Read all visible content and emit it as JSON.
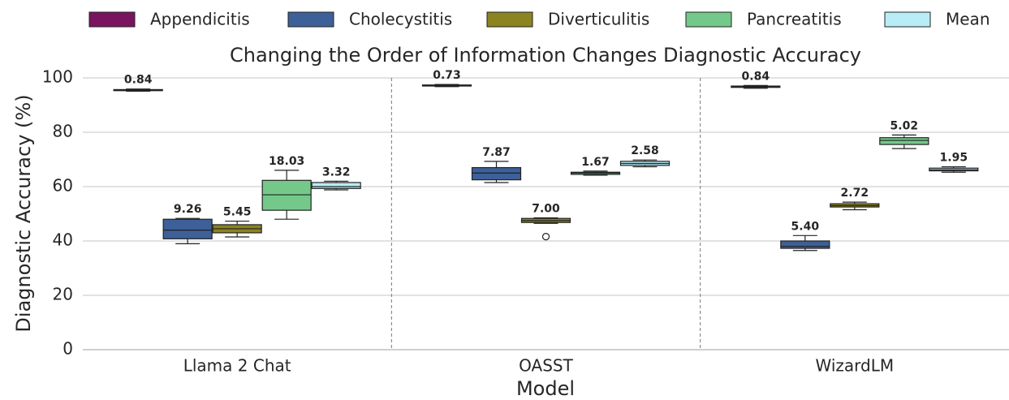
{
  "chart_data": {
    "type": "box",
    "title": "Changing the Order of Information Changes Diagnostic Accuracy",
    "xlabel": "Model",
    "ylabel": "Diagnostic Accuracy (%)",
    "categories": [
      "Llama 2 Chat",
      "OASST",
      "WizardLM"
    ],
    "ylim": [
      0,
      100
    ],
    "yticks": [
      0,
      20,
      40,
      60,
      80,
      100
    ],
    "grid": true,
    "legend": "top",
    "series": [
      {
        "name": "Appendicitis",
        "color": "#7b1460",
        "boxes": [
          {
            "whislo": 95.1,
            "q1": 95.3,
            "med": 95.5,
            "q3": 95.7,
            "whishi": 95.9
          },
          {
            "whislo": 96.8,
            "q1": 97.0,
            "med": 97.2,
            "q3": 97.4,
            "whishi": 97.6
          },
          {
            "whislo": 96.2,
            "q1": 96.5,
            "med": 96.8,
            "q3": 97.0,
            "whishi": 97.2
          }
        ],
        "annotations": [
          0.84,
          0.73,
          0.84
        ],
        "annotation_labels": [
          "0.84",
          "0.73",
          "0.84"
        ]
      },
      {
        "name": "Cholecystitis",
        "color": "#3d6098",
        "boxes": [
          {
            "whislo": 39.0,
            "q1": 40.8,
            "med": 44.0,
            "q3": 48.0,
            "whishi": 48.3
          },
          {
            "whislo": 61.5,
            "q1": 62.5,
            "med": 65.0,
            "q3": 67.0,
            "whishi": 69.3
          },
          {
            "whislo": 36.5,
            "q1": 37.3,
            "med": 38.0,
            "q3": 40.0,
            "whishi": 42.0
          }
        ],
        "annotations": [
          9.26,
          7.87,
          5.4
        ],
        "annotation_labels": [
          "9.26",
          "7.87",
          "5.40"
        ]
      },
      {
        "name": "Diverticulitis",
        "color": "#8b8421",
        "boxes": [
          {
            "whislo": 41.5,
            "q1": 43.0,
            "med": 44.5,
            "q3": 46.0,
            "whishi": 47.3
          },
          {
            "whislo": 46.5,
            "q1": 46.8,
            "med": 47.5,
            "q3": 48.3,
            "whishi": 48.5,
            "fliers": [
              41.6
            ]
          },
          {
            "whislo": 51.5,
            "q1": 52.5,
            "med": 53.0,
            "q3": 53.7,
            "whishi": 54.3
          }
        ],
        "annotations": [
          5.45,
          7.0,
          2.72
        ],
        "annotation_labels": [
          "5.45",
          "7.00",
          "2.72"
        ]
      },
      {
        "name": "Pancreatitis",
        "color": "#74c98a",
        "boxes": [
          {
            "whislo": 48.0,
            "q1": 51.3,
            "med": 57.0,
            "q3": 62.3,
            "whishi": 66.0
          },
          {
            "whislo": 64.2,
            "q1": 64.5,
            "med": 65.0,
            "q3": 65.3,
            "whishi": 65.7
          },
          {
            "whislo": 74.0,
            "q1": 75.5,
            "med": 77.0,
            "q3": 78.0,
            "whishi": 79.0
          }
        ],
        "annotations": [
          18.03,
          1.67,
          5.02
        ],
        "annotation_labels": [
          "18.03",
          "1.67",
          "5.02"
        ]
      },
      {
        "name": "Mean",
        "color": "#b8ecf6",
        "boxes": [
          {
            "whislo": 58.8,
            "q1": 59.3,
            "med": 60.0,
            "q3": 61.5,
            "whishi": 62.0
          },
          {
            "whislo": 67.3,
            "q1": 67.8,
            "med": 68.5,
            "q3": 69.3,
            "whishi": 69.8
          },
          {
            "whislo": 65.3,
            "q1": 65.8,
            "med": 66.2,
            "q3": 66.8,
            "whishi": 67.3
          }
        ],
        "annotations": [
          3.32,
          2.58,
          1.95
        ],
        "annotation_labels": [
          "3.32",
          "2.58",
          "1.95"
        ]
      }
    ]
  }
}
